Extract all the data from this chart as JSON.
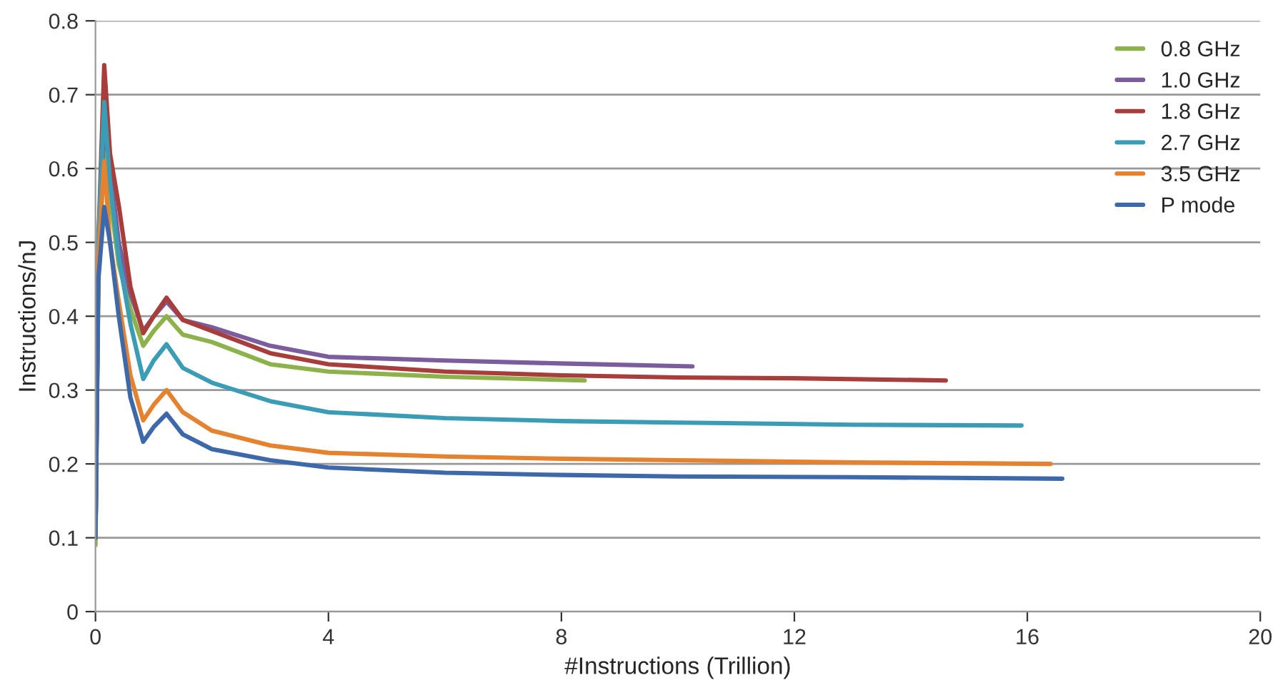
{
  "chart_data": {
    "type": "line",
    "xlabel": "#Instructions (Trillion)",
    "ylabel": "Instructions/nJ",
    "xlim": [
      0,
      20
    ],
    "xticks": [
      0,
      4,
      8,
      12,
      16,
      20
    ],
    "ylim": [
      0,
      0.8
    ],
    "yticks": [
      0,
      0.1,
      0.2,
      0.3,
      0.4,
      0.5,
      0.6,
      0.7,
      0.8
    ],
    "grid": "y",
    "legend": "top right",
    "marker": "none",
    "line_style": "solid",
    "series": [
      {
        "name": "0.8 GHz",
        "color": "#8db24c",
        "x": [
          0,
          0.05,
          0.15,
          0.25,
          0.4,
          0.6,
          0.82,
          1.0,
          1.22,
          1.5,
          2,
          3,
          4,
          6,
          8.4
        ],
        "values": [
          0.09,
          0.45,
          0.64,
          0.56,
          0.47,
          0.41,
          0.36,
          0.38,
          0.4,
          0.375,
          0.365,
          0.335,
          0.325,
          0.318,
          0.313
        ]
      },
      {
        "name": "1.0 GHz",
        "color": "#7b5c9c",
        "x": [
          0,
          0.05,
          0.15,
          0.25,
          0.4,
          0.6,
          0.82,
          1.0,
          1.22,
          1.5,
          2,
          3,
          4,
          6,
          8,
          10.25
        ],
        "values": [
          0.1,
          0.48,
          0.66,
          0.6,
          0.5,
          0.43,
          0.38,
          0.4,
          0.42,
          0.395,
          0.385,
          0.36,
          0.345,
          0.34,
          0.336,
          0.332
        ]
      },
      {
        "name": "1.8 GHz",
        "color": "#a73e3b",
        "x": [
          0,
          0.05,
          0.15,
          0.25,
          0.4,
          0.6,
          0.82,
          1.0,
          1.22,
          1.5,
          2,
          3,
          4,
          6,
          8,
          10,
          12,
          14.6
        ],
        "values": [
          0.1,
          0.5,
          0.74,
          0.62,
          0.55,
          0.44,
          0.377,
          0.4,
          0.425,
          0.395,
          0.38,
          0.35,
          0.335,
          0.325,
          0.32,
          0.317,
          0.316,
          0.313
        ]
      },
      {
        "name": "2.7 GHz",
        "color": "#3a9db5",
        "x": [
          0,
          0.05,
          0.15,
          0.25,
          0.4,
          0.6,
          0.82,
          1.0,
          1.22,
          1.5,
          2,
          3,
          4,
          6,
          8,
          10,
          13,
          15.9
        ],
        "values": [
          0.1,
          0.5,
          0.69,
          0.58,
          0.48,
          0.39,
          0.315,
          0.34,
          0.362,
          0.33,
          0.31,
          0.285,
          0.27,
          0.262,
          0.258,
          0.256,
          0.253,
          0.252
        ]
      },
      {
        "name": "3.5 GHz",
        "color": "#e5822f",
        "x": [
          0,
          0.05,
          0.15,
          0.25,
          0.4,
          0.6,
          0.82,
          1.0,
          1.22,
          1.5,
          2,
          3,
          4,
          6,
          8,
          10,
          13,
          16.4
        ],
        "values": [
          0.1,
          0.48,
          0.61,
          0.5,
          0.42,
          0.32,
          0.259,
          0.28,
          0.3,
          0.27,
          0.245,
          0.225,
          0.215,
          0.21,
          0.207,
          0.205,
          0.202,
          0.2
        ]
      },
      {
        "name": "P mode",
        "color": "#3d69aa",
        "x": [
          0,
          0.05,
          0.15,
          0.25,
          0.4,
          0.6,
          0.82,
          1.0,
          1.22,
          1.5,
          2,
          3,
          4,
          6,
          8,
          10,
          13,
          16.6
        ],
        "values": [
          0.1,
          0.45,
          0.548,
          0.5,
          0.4,
          0.29,
          0.23,
          0.25,
          0.268,
          0.24,
          0.22,
          0.205,
          0.195,
          0.188,
          0.185,
          0.183,
          0.182,
          0.18
        ]
      }
    ]
  }
}
